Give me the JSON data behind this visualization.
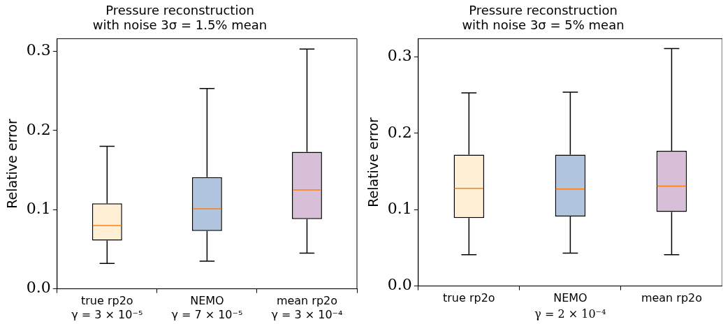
{
  "chart_data": [
    {
      "type": "box",
      "title": "Pressure reconstruction\nwith noise 3σ = 1.5% mean",
      "ylabel": "Relative error",
      "categories": [
        "true rp2o\nγ = 3 × 10⁻⁵",
        "NEMO\nγ = 7 × 10⁻⁵",
        "mean rp2o\nγ = 3 × 10⁻⁴"
      ],
      "colors": [
        "#ffefd5",
        "#b0c4de",
        "#d8bfd8"
      ],
      "boxes": [
        {
          "low": 0.032,
          "q1": 0.061,
          "median": 0.08,
          "q3": 0.108,
          "high": 0.18
        },
        {
          "low": 0.035,
          "q1": 0.073,
          "median": 0.101,
          "q3": 0.141,
          "high": 0.253
        },
        {
          "low": 0.045,
          "q1": 0.088,
          "median": 0.125,
          "q3": 0.173,
          "high": 0.303
        }
      ],
      "ylim": [
        0,
        0.316
      ],
      "yticks": [
        {
          "value": 0,
          "label": "0.0"
        },
        {
          "value": 0.1,
          "label": "0.1"
        },
        {
          "value": 0.2,
          "label": "0.2"
        },
        {
          "value": 0.3,
          "label": "0.3"
        }
      ],
      "grid": false
    },
    {
      "type": "box",
      "title": "Pressure reconstruction\nwith noise 3σ = 5% mean",
      "ylabel": "Relative error",
      "xlabel": "γ = 2 × 10⁻⁴",
      "categories": [
        "true rp2o",
        "NEMO",
        "mean rp2o"
      ],
      "colors": [
        "#ffefd5",
        "#b0c4de",
        "#d8bfd8"
      ],
      "boxes": [
        {
          "low": 0.041,
          "q1": 0.089,
          "median": 0.128,
          "q3": 0.172,
          "high": 0.253
        },
        {
          "low": 0.043,
          "q1": 0.091,
          "median": 0.127,
          "q3": 0.172,
          "high": 0.254
        },
        {
          "low": 0.041,
          "q1": 0.097,
          "median": 0.131,
          "q3": 0.177,
          "high": 0.311
        }
      ],
      "ylim": [
        0,
        0.324
      ],
      "yticks": [
        {
          "value": 0,
          "label": "0.0"
        },
        {
          "value": 0.1,
          "label": "0.1"
        },
        {
          "value": 0.2,
          "label": "0.2"
        },
        {
          "value": 0.3,
          "label": "0.3"
        }
      ],
      "grid": false
    }
  ]
}
